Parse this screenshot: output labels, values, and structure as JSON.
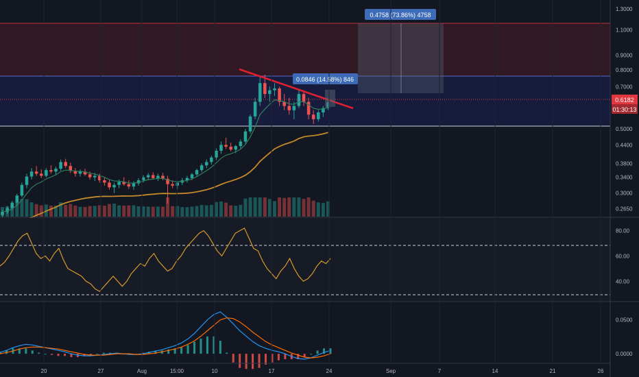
{
  "colors": {
    "background": "#131722",
    "candle_up": "#26a69a",
    "candle_down": "#ef5350",
    "ema_fast": "#2e7d5b",
    "ma_long": "#c58a2a",
    "rsi_line": "#d79a2b",
    "macd_line": "#2196f3",
    "signal_line": "#ff6d00",
    "trendline": "#e0202f",
    "resistance_zone": "#4a1c24",
    "support_zone": "#1a1d3f",
    "price_tag": "#e0383e",
    "measure_label": "#3d6bb8"
  },
  "chart_data": [
    {
      "type": "candlestick",
      "pane": "price",
      "series": [
        {
          "name": "",
          "kind": "candles",
          "values": [
            [
              0.252,
              0.262,
              0.248,
              0.258
            ],
            [
              0.258,
              0.27,
              0.254,
              0.266
            ],
            [
              0.266,
              0.282,
              0.262,
              0.278
            ],
            [
              0.278,
              0.298,
              0.272,
              0.294
            ],
            [
              0.294,
              0.326,
              0.29,
              0.32
            ],
            [
              0.32,
              0.35,
              0.312,
              0.342
            ],
            [
              0.342,
              0.366,
              0.334,
              0.356
            ],
            [
              0.356,
              0.372,
              0.344,
              0.35
            ],
            [
              0.35,
              0.362,
              0.338,
              0.344
            ],
            [
              0.344,
              0.366,
              0.34,
              0.36
            ],
            [
              0.36,
              0.374,
              0.35,
              0.356
            ],
            [
              0.356,
              0.37,
              0.346,
              0.364
            ],
            [
              0.364,
              0.392,
              0.358,
              0.384
            ],
            [
              0.384,
              0.394,
              0.366,
              0.372
            ],
            [
              0.372,
              0.382,
              0.352,
              0.358
            ],
            [
              0.358,
              0.366,
              0.342,
              0.35
            ],
            [
              0.35,
              0.362,
              0.342,
              0.356
            ],
            [
              0.356,
              0.364,
              0.344,
              0.348
            ],
            [
              0.348,
              0.356,
              0.334,
              0.34
            ],
            [
              0.34,
              0.352,
              0.33,
              0.344
            ],
            [
              0.344,
              0.35,
              0.326,
              0.332
            ],
            [
              0.332,
              0.34,
              0.318,
              0.326
            ],
            [
              0.326,
              0.334,
              0.308,
              0.314
            ],
            [
              0.314,
              0.326,
              0.3,
              0.32
            ],
            [
              0.32,
              0.334,
              0.312,
              0.328
            ],
            [
              0.328,
              0.34,
              0.318,
              0.322
            ],
            [
              0.322,
              0.332,
              0.31,
              0.316
            ],
            [
              0.316,
              0.33,
              0.308,
              0.324
            ],
            [
              0.324,
              0.338,
              0.318,
              0.332
            ],
            [
              0.332,
              0.346,
              0.326,
              0.34
            ],
            [
              0.34,
              0.352,
              0.332,
              0.346
            ],
            [
              0.346,
              0.354,
              0.334,
              0.338
            ],
            [
              0.338,
              0.35,
              0.33,
              0.344
            ],
            [
              0.344,
              0.352,
              0.332,
              0.336
            ],
            [
              0.336,
              0.344,
              0.276,
              0.322
            ],
            [
              0.322,
              0.332,
              0.312,
              0.318
            ],
            [
              0.318,
              0.33,
              0.31,
              0.326
            ],
            [
              0.326,
              0.338,
              0.32,
              0.332
            ],
            [
              0.332,
              0.344,
              0.326,
              0.338
            ],
            [
              0.338,
              0.352,
              0.332,
              0.348
            ],
            [
              0.348,
              0.364,
              0.342,
              0.36
            ],
            [
              0.36,
              0.38,
              0.354,
              0.374
            ],
            [
              0.374,
              0.392,
              0.366,
              0.384
            ],
            [
              0.384,
              0.404,
              0.376,
              0.398
            ],
            [
              0.398,
              0.428,
              0.39,
              0.42
            ],
            [
              0.42,
              0.452,
              0.41,
              0.44
            ],
            [
              0.44,
              0.466,
              0.426,
              0.434
            ],
            [
              0.434,
              0.448,
              0.418,
              0.424
            ],
            [
              0.424,
              0.44,
              0.412,
              0.436
            ],
            [
              0.436,
              0.46,
              0.428,
              0.452
            ],
            [
              0.452,
              0.5,
              0.444,
              0.49
            ],
            [
              0.49,
              0.56,
              0.482,
              0.552
            ],
            [
              0.552,
              0.64,
              0.54,
              0.62
            ],
            [
              0.62,
              0.76,
              0.6,
              0.72
            ],
            [
              0.72,
              0.77,
              0.64,
              0.66
            ],
            [
              0.66,
              0.7,
              0.62,
              0.68
            ],
            [
              0.68,
              0.72,
              0.65,
              0.69
            ],
            [
              0.69,
              0.7,
              0.6,
              0.62
            ],
            [
              0.62,
              0.66,
              0.58,
              0.6
            ],
            [
              0.6,
              0.64,
              0.56,
              0.58
            ],
            [
              0.58,
              0.62,
              0.54,
              0.6
            ],
            [
              0.6,
              0.68,
              0.59,
              0.66
            ],
            [
              0.66,
              0.68,
              0.6,
              0.62
            ],
            [
              0.62,
              0.64,
              0.54,
              0.56
            ],
            [
              0.56,
              0.58,
              0.52,
              0.54
            ],
            [
              0.54,
              0.58,
              0.53,
              0.57
            ],
            [
              0.57,
              0.6,
              0.55,
              0.59
            ],
            [
              0.59,
              0.64,
              0.58,
              0.618
            ]
          ]
        },
        {
          "name": "",
          "kind": "line",
          "ref": "ema_fast"
        },
        {
          "name": "",
          "kind": "line",
          "ref": "ma_long"
        }
      ],
      "x_tick_labels": [
        "20",
        "27",
        "Aug",
        "15:00",
        "10",
        "17",
        "24",
        "Sep",
        "7",
        "14",
        "21",
        "26"
      ],
      "y_tick_labels": [
        "1.3000",
        "1.1000",
        "0.9000",
        "0.8000",
        "0.7000",
        "0.6000",
        "0.5000",
        "0.4400",
        "0.3800",
        "0.3400",
        "0.3000",
        "0.2650"
      ],
      "y_scale": "log",
      "ylim": [
        0.25,
        1.35
      ],
      "zones": [
        {
          "kind": "resistance",
          "low": 0.735,
          "high": 1.11
        },
        {
          "kind": "support",
          "low": 0.5,
          "high": 0.735
        }
      ],
      "annotations": [
        {
          "label": "0.0846 (14.58%) 846"
        },
        {
          "label": "0.4758 (73.86%) 4758"
        }
      ],
      "price_tags": [
        {
          "label": "0.6182"
        },
        {
          "label": "01:30:13"
        }
      ]
    },
    {
      "type": "line",
      "pane": "rsi",
      "y_tick_labels": [
        "80.00",
        "60.00",
        "40.00"
      ],
      "ylim": [
        25,
        90
      ],
      "levels": [
        70,
        30
      ],
      "series": [
        {
          "name": "",
          "values": [
            52,
            55,
            60,
            66,
            72,
            76,
            78,
            70,
            62,
            58,
            60,
            56,
            62,
            66,
            57,
            50,
            48,
            46,
            44,
            40,
            38,
            34,
            32,
            36,
            40,
            44,
            40,
            36,
            40,
            46,
            50,
            54,
            52,
            58,
            62,
            56,
            52,
            48,
            50,
            56,
            60,
            66,
            70,
            74,
            78,
            80,
            76,
            70,
            64,
            60,
            66,
            72,
            78,
            80,
            82,
            74,
            66,
            64,
            56,
            50,
            46,
            42,
            48,
            52,
            58,
            50,
            44,
            40,
            42,
            46,
            52,
            56,
            54,
            58
          ]
        }
      ]
    },
    {
      "type": "line",
      "pane": "macd",
      "y_tick_labels": [
        "0.0500",
        "0.0000"
      ],
      "ylim": [
        -0.012,
        0.075
      ],
      "series": [
        {
          "name": "",
          "values": [
            0.002,
            0.005,
            0.009,
            0.012,
            0.014,
            0.013,
            0.011,
            0.009,
            0.007,
            0.005,
            0.003,
            0.0,
            -0.002,
            -0.003,
            -0.003,
            -0.002,
            -0.001,
            0.0,
            0.001,
            0.0,
            -0.001,
            -0.001,
            0.0,
            0.002,
            0.004,
            0.006,
            0.009,
            0.012,
            0.016,
            0.022,
            0.03,
            0.04,
            0.05,
            0.058,
            0.062,
            0.054,
            0.044,
            0.034,
            0.026,
            0.018,
            0.012,
            0.008,
            0.005,
            0.003,
            0.0,
            -0.004,
            -0.007,
            -0.008,
            -0.006,
            -0.002,
            0.002,
            0.005
          ]
        },
        {
          "name": "",
          "values": [
            0.0,
            0.002,
            0.004,
            0.007,
            0.009,
            0.01,
            0.01,
            0.009,
            0.008,
            0.007,
            0.005,
            0.003,
            0.001,
            -0.001,
            -0.002,
            -0.002,
            -0.002,
            -0.001,
            0.0,
            0.0,
            0.0,
            -0.001,
            -0.001,
            0.0,
            0.001,
            0.003,
            0.005,
            0.007,
            0.01,
            0.014,
            0.019,
            0.026,
            0.034,
            0.042,
            0.05,
            0.053,
            0.052,
            0.047,
            0.04,
            0.032,
            0.025,
            0.018,
            0.013,
            0.009,
            0.005,
            0.001,
            -0.002,
            -0.005,
            -0.006,
            -0.005,
            -0.003,
            0.0
          ]
        }
      ]
    }
  ]
}
